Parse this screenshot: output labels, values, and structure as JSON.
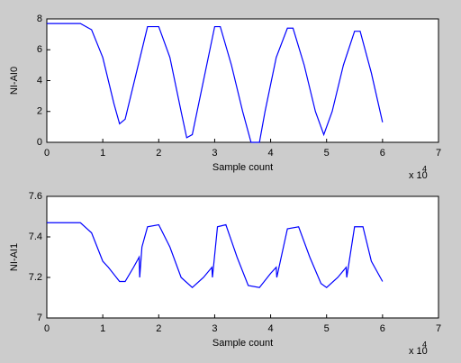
{
  "chart_data": [
    {
      "type": "line",
      "xlabel": "Sample count",
      "ylabel": "NI-AI0",
      "color": "#0000ff",
      "x_multiplier": {
        "base": "x 10",
        "exponent": "4"
      },
      "xlim": [
        0,
        7
      ],
      "xticks": [
        0,
        1,
        2,
        3,
        4,
        5,
        6,
        7
      ],
      "ylim": [
        0,
        8
      ],
      "yticks": [
        0,
        2,
        4,
        6,
        8
      ],
      "x": [
        0,
        0.6,
        0.8,
        1.0,
        1.2,
        1.3,
        1.4,
        1.6,
        1.8,
        2.0,
        2.2,
        2.4,
        2.5,
        2.6,
        2.8,
        3.0,
        3.1,
        3.3,
        3.5,
        3.65,
        3.8,
        3.9,
        4.1,
        4.3,
        4.4,
        4.6,
        4.8,
        4.95,
        5.1,
        5.3,
        5.5,
        5.6,
        5.8,
        6.0
      ],
      "values": [
        7.7,
        7.7,
        7.3,
        5.5,
        2.5,
        1.2,
        1.5,
        4.5,
        7.5,
        7.5,
        5.5,
        2,
        0.3,
        0.5,
        4,
        7.5,
        7.5,
        5,
        2,
        0,
        0,
        2,
        5.5,
        7.4,
        7.4,
        5,
        2,
        0.5,
        2,
        5,
        7.2,
        7.2,
        4.5,
        1.3
      ]
    },
    {
      "type": "line",
      "xlabel": "Sample count",
      "ylabel": "NI-AI1",
      "color": "#0000ff",
      "x_multiplier": {
        "base": "x 10",
        "exponent": "4"
      },
      "xlim": [
        0,
        7
      ],
      "xticks": [
        0,
        1,
        2,
        3,
        4,
        5,
        6,
        7
      ],
      "ylim": [
        7,
        7.6
      ],
      "yticks": [
        7,
        7.2,
        7.4,
        7.6
      ],
      "x": [
        0,
        0.6,
        0.8,
        1.0,
        1.1,
        1.3,
        1.4,
        1.55,
        1.65,
        1.66,
        1.7,
        1.8,
        2.0,
        2.2,
        2.4,
        2.6,
        2.8,
        2.95,
        2.96,
        3.05,
        3.2,
        3.4,
        3.6,
        3.8,
        4.0,
        4.1,
        4.11,
        4.3,
        4.5,
        4.7,
        4.9,
        5.0,
        5.2,
        5.35,
        5.36,
        5.5,
        5.65,
        5.8,
        6.0
      ],
      "values": [
        7.47,
        7.47,
        7.42,
        7.28,
        7.25,
        7.18,
        7.18,
        7.25,
        7.3,
        7.2,
        7.35,
        7.45,
        7.46,
        7.35,
        7.2,
        7.15,
        7.2,
        7.25,
        7.2,
        7.45,
        7.46,
        7.3,
        7.16,
        7.15,
        7.22,
        7.25,
        7.2,
        7.44,
        7.45,
        7.3,
        7.17,
        7.15,
        7.2,
        7.25,
        7.2,
        7.45,
        7.45,
        7.28,
        7.18
      ]
    }
  ]
}
